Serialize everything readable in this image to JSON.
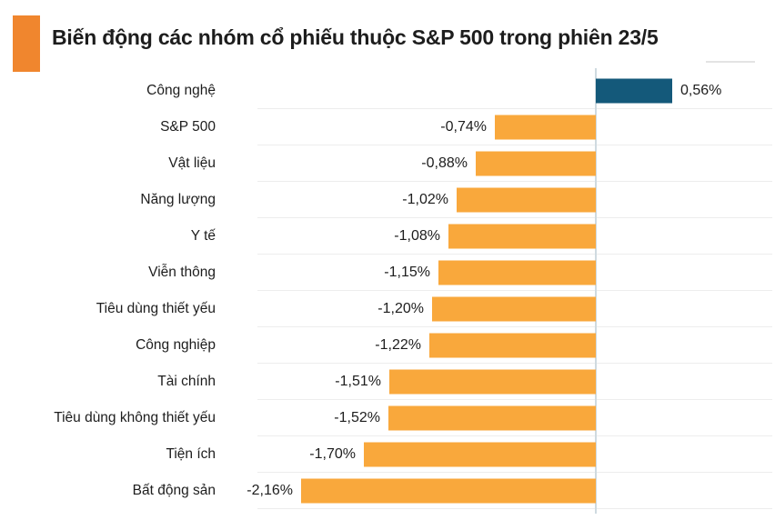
{
  "title": "Biến động các nhóm cổ phiếu thuộc S&P 500 trong phiên 23/5",
  "colors": {
    "title_accent": "#f0862e",
    "positive_bar": "#14597a",
    "negative_bar": "#f9a83c",
    "axis_line": "#cfdae0",
    "gridline": "#ededed",
    "text": "#1d1d1d",
    "background": "#ffffff"
  },
  "chart_data": {
    "type": "bar",
    "orientation": "horizontal",
    "title": "Biến động các nhóm cổ phiếu thuộc S&P 500 trong phiên 23/5",
    "xlabel": "",
    "ylabel": "",
    "unit": "%",
    "decimal_separator": ",",
    "legend": "none",
    "grid": "row-separators",
    "xlim": [
      -2.5,
      1.3
    ],
    "categories": [
      "Công nghệ",
      "S&P 500",
      "Vật liệu",
      "Năng lượng",
      "Y tế",
      "Viễn thông",
      "Tiêu dùng thiết yếu",
      "Công nghiệp",
      "Tài chính",
      "Tiêu dùng không thiết yếu",
      "Tiện ích",
      "Bất động sản"
    ],
    "values": [
      0.56,
      -0.74,
      -0.88,
      -1.02,
      -1.08,
      -1.15,
      -1.2,
      -1.22,
      -1.51,
      -1.52,
      -1.7,
      -2.16
    ],
    "value_labels": [
      "0,56%",
      "-0,74%",
      "-0,88%",
      "-1,02%",
      "-1,08%",
      "-1,15%",
      "-1,20%",
      "-1,22%",
      "-1,51%",
      "-1,52%",
      "-1,70%",
      "-2,16%"
    ]
  }
}
